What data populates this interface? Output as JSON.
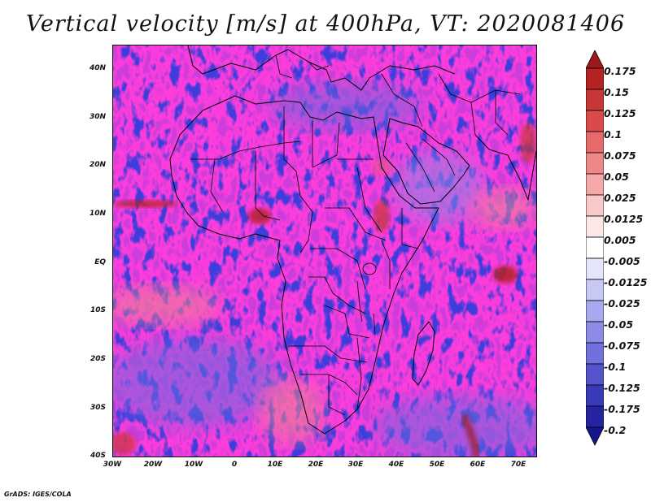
{
  "title": "Vertical velocity [m/s] at 400hPa, VT: 2020081406",
  "footer": "GrADS: IGES/COLA",
  "chart_data": {
    "type": "heatmap",
    "title": "Vertical velocity [m/s] at 400hPa, VT: 2020081406",
    "variable": "Vertical velocity",
    "units": "m/s",
    "level": "400hPa",
    "valid_time": "2020081406",
    "x_ticks": [
      "30W",
      "20W",
      "10W",
      "0",
      "10E",
      "20E",
      "30E",
      "40E",
      "50E",
      "60E",
      "70E"
    ],
    "y_ticks": [
      "40N",
      "30N",
      "20N",
      "10N",
      "EQ",
      "10S",
      "20S",
      "30S",
      "40S"
    ],
    "lon_range": [
      -30,
      75
    ],
    "lat_range": [
      -40,
      45
    ],
    "colorbar": {
      "levels": [
        "0.175",
        "0.15",
        "0.125",
        "0.1",
        "0.075",
        "0.05",
        "0.025",
        "0.0125",
        "0.005",
        "-0.005",
        "-0.0125",
        "-0.025",
        "-0.05",
        "-0.075",
        "-0.1",
        "-0.125",
        "-0.175",
        "-0.2"
      ],
      "colors": [
        "#9e1a1a",
        "#b52323",
        "#c93636",
        "#d94b4b",
        "#e66a6a",
        "#ee8888",
        "#f4a8a8",
        "#f9c8c8",
        "#fde6e6",
        "#ffffff",
        "#e4e4fb",
        "#c8c8f4",
        "#a8a8ee",
        "#8c8ce6",
        "#7070de",
        "#5454cc",
        "#3a3ab8",
        "#2424a0",
        "#14148c"
      ]
    },
    "features": [
      {
        "name": "strong ascent line",
        "lon": -22,
        "lat": 10
      },
      {
        "name": "ascent over West Africa",
        "lon": 6,
        "lat": 9
      },
      {
        "name": "ascent over Ethiopian highlands",
        "lon": 36,
        "lat": 12
      },
      {
        "name": "tropical cyclone-like ascent",
        "lon": 65,
        "lat": -2
      },
      {
        "name": "southern Indian Ocean ascent band",
        "lon": 57,
        "lat": -33
      },
      {
        "name": "southwest Atlantic ascent",
        "lon": -28,
        "lat": -37
      },
      {
        "name": "Mediterranean subsidence",
        "lon": 20,
        "lat": 35
      }
    ]
  }
}
